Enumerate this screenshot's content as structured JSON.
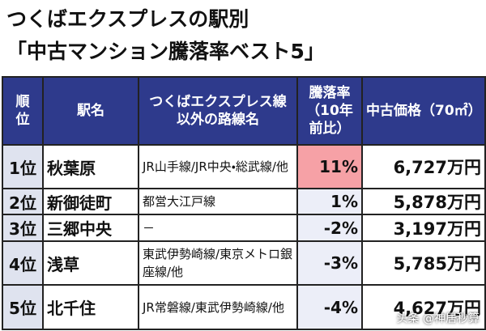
{
  "header": {
    "title": [
      "つくばエクスプレスの駅別",
      "「中古マンション騰落率ベスト5」"
    ]
  },
  "table": {
    "columns": [
      "順位",
      "駅名",
      "つくばエクスプレス線以外の路線名",
      "騰落率（10年前比）",
      "中古価格（70㎡）"
    ],
    "rows": [
      [
        "1位",
        "秋葉原",
        "JR山手線/JR中央・総武線/他",
        "11%",
        "6,727万円"
      ],
      [
        "2位",
        "新御徒町",
        "都営大江戸線",
        "1%",
        "5,878万円"
      ],
      [
        "3位",
        "三郷中央",
        "－",
        "-2%",
        "3,197万円"
      ],
      [
        "4位",
        "浅草",
        "東武伊勢崎線/東京メトロ銀座線/他",
        "-3%",
        "5,785万円"
      ],
      [
        "5位",
        "北千住",
        "JR常磐線/東武伊勢崎線/他",
        "-4%",
        "4,627万円"
      ]
    ]
  },
  "watermark": "头条 @神居秒算"
}
